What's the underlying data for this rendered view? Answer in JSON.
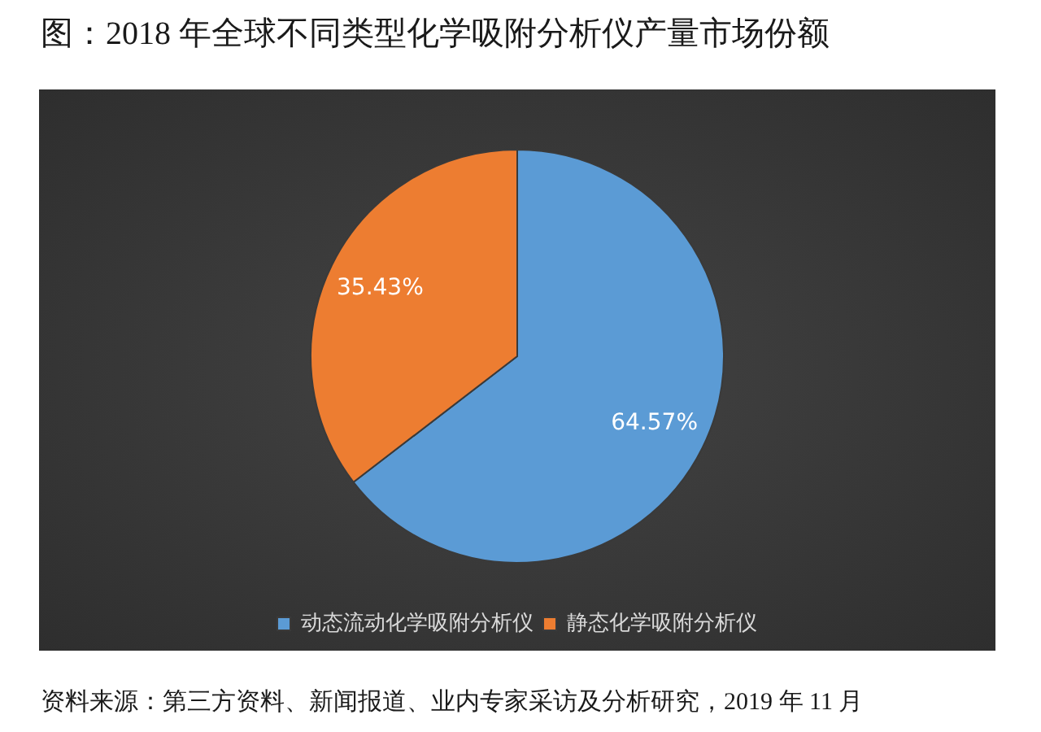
{
  "chart_data": {
    "type": "pie",
    "title": "图：2018 年全球不同类型化学吸附分析仪产量市场份额",
    "categories": [
      "动态流动化学吸附分析仪",
      "静态化学吸附分析仪"
    ],
    "values": [
      64.57,
      35.43
    ],
    "colors": [
      "#5b9bd5",
      "#ed7d31"
    ],
    "value_labels": [
      "64.57%",
      "35.43%"
    ],
    "legend": "bottom",
    "annotations": [
      "资料来源：第三方资料、新闻报道、业内专家采访及分析研究，2019 年 11 月"
    ]
  }
}
